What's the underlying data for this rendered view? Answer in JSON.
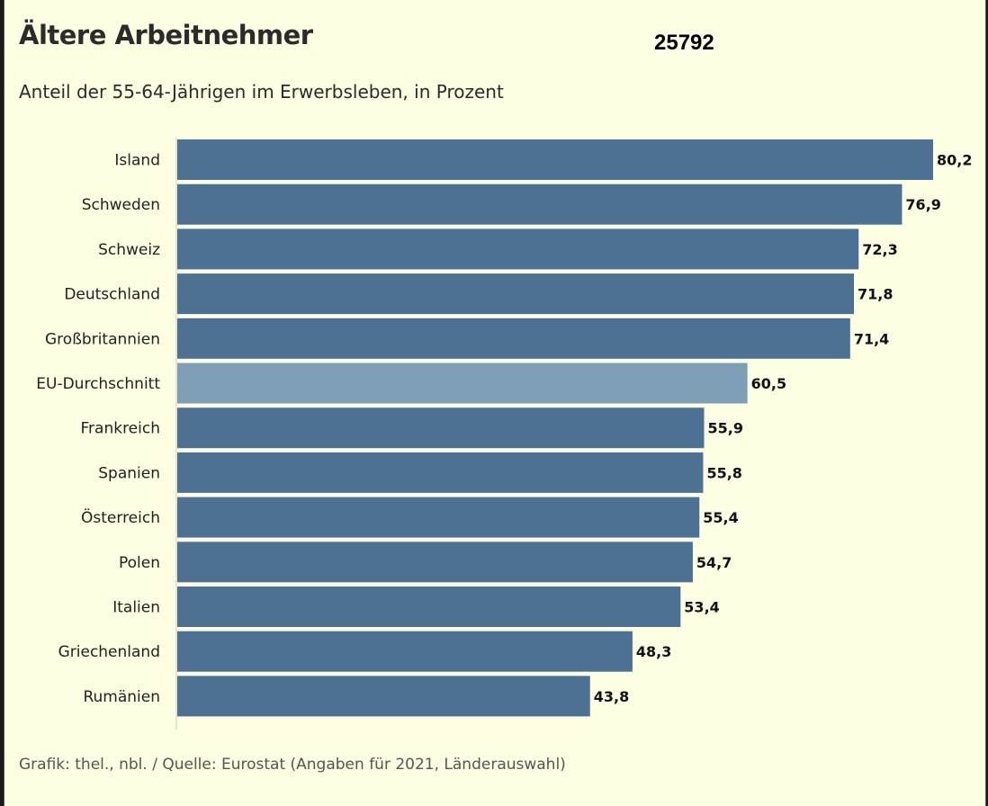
{
  "chart_data": {
    "type": "bar",
    "orientation": "horizontal",
    "title": "Ältere Arbeitnehmer",
    "chart_number": "25792",
    "subtitle": "Anteil der 55-64-Jährigen im Erwerbsleben, in Prozent",
    "source": "Grafik: thel., nbl. / Quelle: Eurostat (Angaben für 2021, Länderauswahl)",
    "categories": [
      "Island",
      "Schweden",
      "Schweiz",
      "Deutschland",
      "Großbritannien",
      "EU-Durchschnitt",
      "Frankreich",
      "Spanien",
      "Österreich",
      "Polen",
      "Italien",
      "Griechenland",
      "Rumänien"
    ],
    "values": [
      80.2,
      76.9,
      72.3,
      71.8,
      71.4,
      60.5,
      55.9,
      55.8,
      55.4,
      54.7,
      53.4,
      48.3,
      43.8
    ],
    "value_labels": [
      "80,2",
      "76,9",
      "72,3",
      "71,8",
      "71,4",
      "60,5",
      "55,9",
      "55,8",
      "55,4",
      "54,7",
      "53,4",
      "48,3",
      "43,8"
    ],
    "highlight_category": "EU-Durchschnitt",
    "xlim": [
      0,
      80.2
    ],
    "grid": false,
    "colors": {
      "bar": "#4c7193",
      "highlight": "#7f9fb6",
      "background": "#fefee3"
    }
  }
}
